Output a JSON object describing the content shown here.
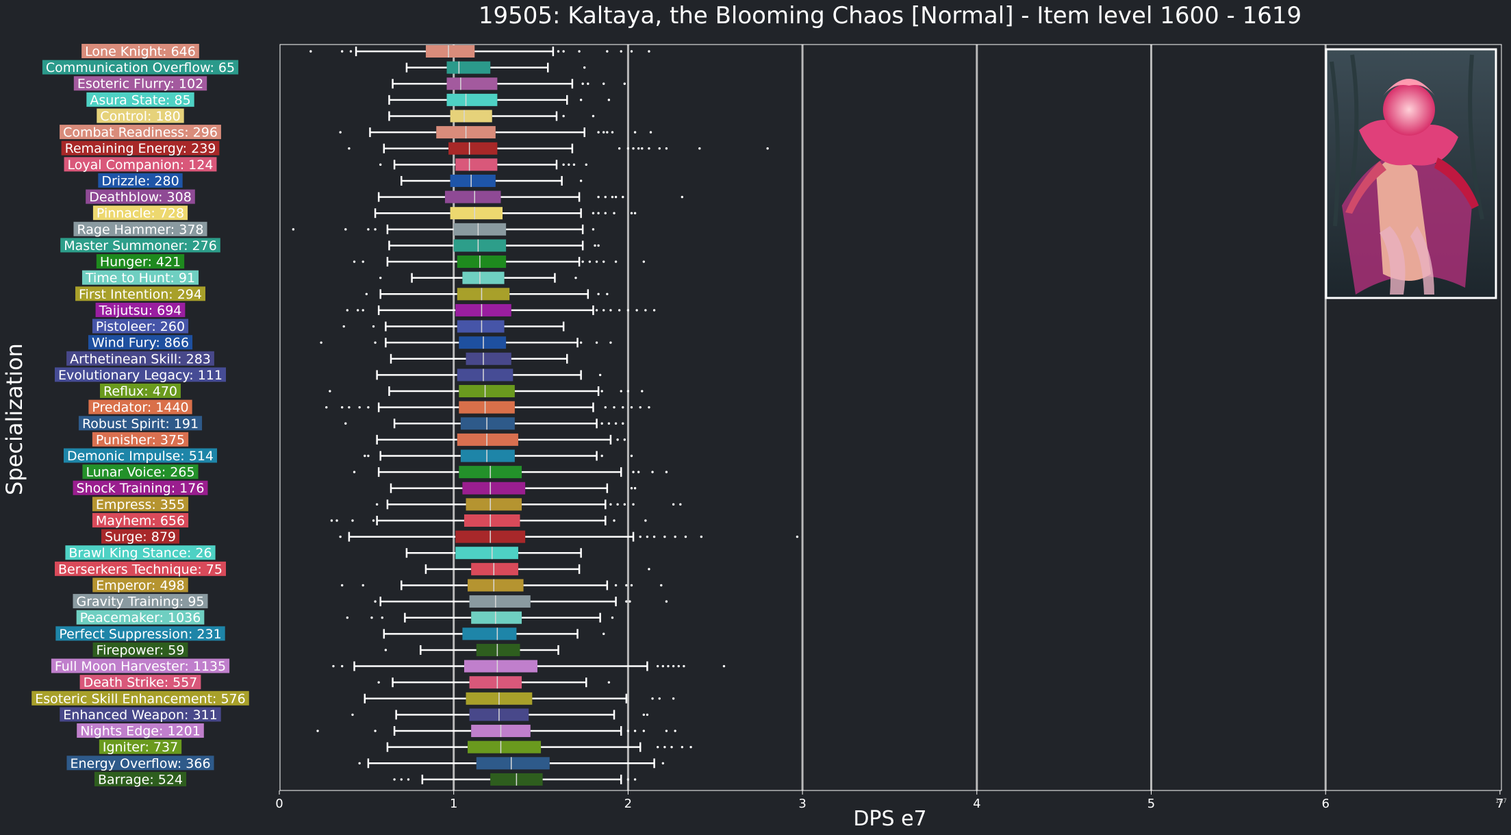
{
  "chart_data": {
    "type": "boxplot",
    "orientation": "horizontal",
    "title": "19505: Kaltaya, the Blooming Chaos [Normal] - Item level 1600 - 1619",
    "xlabel": "DPS e7",
    "ylabel": "Specialization",
    "offset_label": "1e7",
    "xlim": [
      0,
      7
    ],
    "xticks": [
      "0",
      "1",
      "2",
      "3",
      "4",
      "5",
      "6",
      "7"
    ],
    "grid_x": true,
    "boss_image": "kaltaya-boss-portrait",
    "categories": [
      {
        "label": "Lone Knight: 646",
        "color": "#D98C7B",
        "wl": 0.44,
        "q1": 0.84,
        "med": 0.97,
        "q3": 1.12,
        "wh": 1.57,
        "out": [
          0.18,
          0.36,
          0.41,
          1.6,
          1.63,
          1.72,
          1.88,
          1.96,
          2.02,
          2.12
        ]
      },
      {
        "label": "Communication Overflow: 65",
        "color": "#2B9A8B",
        "wl": 0.73,
        "q1": 0.96,
        "med": 1.03,
        "q3": 1.21,
        "wh": 1.54,
        "out": [
          1.75
        ]
      },
      {
        "label": "Esoteric Flurry: 102",
        "color": "#A35A9E",
        "wl": 0.65,
        "q1": 0.96,
        "med": 1.04,
        "q3": 1.25,
        "wh": 1.68,
        "out": [
          1.74,
          1.77,
          1.86,
          1.98
        ]
      },
      {
        "label": "Asura State: 85",
        "color": "#4ED1C4",
        "wl": 0.63,
        "q1": 0.96,
        "med": 1.07,
        "q3": 1.25,
        "wh": 1.65,
        "out": [
          1.73,
          1.89
        ]
      },
      {
        "label": "Control: 180",
        "color": "#E6D27A",
        "wl": 0.63,
        "q1": 0.98,
        "med": 1.06,
        "q3": 1.22,
        "wh": 1.59,
        "out": [
          1.63,
          1.8
        ]
      },
      {
        "label": "Combat Readiness: 296",
        "color": "#D98C7B",
        "wl": 0.52,
        "q1": 0.9,
        "med": 1.07,
        "q3": 1.24,
        "wh": 1.75,
        "out": [
          0.35,
          1.83,
          1.86,
          1.88,
          1.91,
          2.04,
          2.13
        ]
      },
      {
        "label": "Remaining Energy: 239",
        "color": "#A82828",
        "wl": 0.6,
        "q1": 0.97,
        "med": 1.09,
        "q3": 1.25,
        "wh": 1.68,
        "out": [
          0.4,
          1.95,
          2.0,
          2.03,
          2.06,
          2.08,
          2.12,
          2.18,
          2.22,
          2.41,
          2.8
        ]
      },
      {
        "label": "Loyal Companion: 124",
        "color": "#D9587A",
        "wl": 0.66,
        "q1": 1.01,
        "med": 1.09,
        "q3": 1.25,
        "wh": 1.59,
        "out": [
          0.58,
          1.63,
          1.66,
          1.69,
          1.76
        ]
      },
      {
        "label": "Drizzle: 280",
        "color": "#1E55A8",
        "wl": 0.7,
        "q1": 0.98,
        "med": 1.1,
        "q3": 1.24,
        "wh": 1.62,
        "out": [
          1.73
        ]
      },
      {
        "label": "Deathblow: 308",
        "color": "#8F4A95",
        "wl": 0.57,
        "q1": 0.95,
        "med": 1.12,
        "q3": 1.27,
        "wh": 1.72,
        "out": [
          1.83,
          1.87,
          1.91,
          1.93,
          1.97,
          2.31
        ]
      },
      {
        "label": "Pinnacle: 728",
        "color": "#EDD86F",
        "wl": 0.55,
        "q1": 0.98,
        "med": 1.12,
        "q3": 1.28,
        "wh": 1.73,
        "out": [
          1.8,
          1.83,
          1.87,
          1.92,
          2.02,
          2.04
        ]
      },
      {
        "label": "Rage Hammer: 378",
        "color": "#8A9AA0",
        "wl": 0.62,
        "q1": 1.0,
        "med": 1.14,
        "q3": 1.3,
        "wh": 1.74,
        "out": [
          0.08,
          0.38,
          0.51,
          0.55,
          1.8
        ]
      },
      {
        "label": "Master Summoner: 276",
        "color": "#2D9E8A",
        "wl": 0.63,
        "q1": 1.0,
        "med": 1.14,
        "q3": 1.3,
        "wh": 1.74,
        "out": [
          1.81,
          1.83
        ]
      },
      {
        "label": "Hunger: 421",
        "color": "#1E8A1E",
        "wl": 0.62,
        "q1": 1.02,
        "med": 1.15,
        "q3": 1.3,
        "wh": 1.72,
        "out": [
          0.43,
          0.48,
          1.74,
          1.78,
          1.82,
          1.86,
          1.93,
          2.09
        ]
      },
      {
        "label": "Time to Hunt: 91",
        "color": "#6FCFC1",
        "wl": 0.76,
        "q1": 1.05,
        "med": 1.15,
        "q3": 1.29,
        "wh": 1.58,
        "out": [
          0.58,
          1.7
        ]
      },
      {
        "label": "First Intention: 294",
        "color": "#A8A02A",
        "wl": 0.58,
        "q1": 1.02,
        "med": 1.16,
        "q3": 1.32,
        "wh": 1.77,
        "out": [
          0.5,
          1.83,
          1.88
        ]
      },
      {
        "label": "Taijutsu: 694",
        "color": "#9A1EA0",
        "wl": 0.57,
        "q1": 1.01,
        "med": 1.16,
        "q3": 1.33,
        "wh": 1.8,
        "out": [
          0.39,
          0.45,
          0.48,
          1.82,
          1.86,
          1.9,
          1.95,
          2.0,
          2.05,
          2.1,
          2.15
        ]
      },
      {
        "label": "Pistoleer: 260",
        "color": "#4655A8",
        "wl": 0.61,
        "q1": 1.02,
        "med": 1.16,
        "q3": 1.29,
        "wh": 1.63,
        "out": [
          0.37,
          0.54
        ]
      },
      {
        "label": "Wind Fury: 866",
        "color": "#1E50A0",
        "wl": 0.61,
        "q1": 1.03,
        "med": 1.17,
        "q3": 1.3,
        "wh": 1.71,
        "out": [
          0.24,
          0.55,
          1.73,
          1.82,
          1.9
        ]
      },
      {
        "label": "Arthetinean Skill: 283",
        "color": "#48488A",
        "wl": 0.64,
        "q1": 1.07,
        "med": 1.17,
        "q3": 1.33,
        "wh": 1.65,
        "out": []
      },
      {
        "label": "Evolutionary Legacy: 111",
        "color": "#464C95",
        "wl": 0.56,
        "q1": 1.02,
        "med": 1.17,
        "q3": 1.34,
        "wh": 1.73,
        "out": [
          1.84
        ]
      },
      {
        "label": "Reflux: 470",
        "color": "#6A9A1E",
        "wl": 0.63,
        "q1": 1.03,
        "med": 1.18,
        "q3": 1.35,
        "wh": 1.83,
        "out": [
          0.29,
          1.85,
          1.96,
          2.0,
          2.08
        ]
      },
      {
        "label": "Predator: 1440",
        "color": "#D9704A",
        "wl": 0.57,
        "q1": 1.03,
        "med": 1.18,
        "q3": 1.35,
        "wh": 1.8,
        "out": [
          0.27,
          0.36,
          0.4,
          0.46,
          0.51,
          1.87,
          1.92,
          1.97,
          2.02,
          2.07,
          2.12
        ]
      },
      {
        "label": "Robust Spirit: 191",
        "color": "#2E5A8A",
        "wl": 0.66,
        "q1": 1.04,
        "med": 1.19,
        "q3": 1.35,
        "wh": 1.82,
        "out": [
          0.38,
          1.85,
          1.89,
          1.93,
          1.97
        ]
      },
      {
        "label": "Punisher: 375",
        "color": "#D97050",
        "wl": 0.56,
        "q1": 1.02,
        "med": 1.19,
        "q3": 1.37,
        "wh": 1.9,
        "out": [
          1.94,
          1.98
        ]
      },
      {
        "label": "Demonic Impulse: 514",
        "color": "#1E85A8",
        "wl": 0.58,
        "q1": 1.04,
        "med": 1.19,
        "q3": 1.35,
        "wh": 1.82,
        "out": [
          0.49,
          0.51,
          1.85,
          2.02
        ]
      },
      {
        "label": "Lunar Voice: 265",
        "color": "#23912A",
        "wl": 0.57,
        "q1": 1.03,
        "med": 1.21,
        "q3": 1.39,
        "wh": 1.96,
        "out": [
          0.43,
          2.03,
          2.06,
          2.14,
          2.22
        ]
      },
      {
        "label": "Shock Training: 176",
        "color": "#9A1E8F",
        "wl": 0.64,
        "q1": 1.05,
        "med": 1.21,
        "q3": 1.41,
        "wh": 1.88,
        "out": [
          2.02,
          2.04
        ]
      },
      {
        "label": "Empress: 355",
        "color": "#B59430",
        "wl": 0.62,
        "q1": 1.07,
        "med": 1.21,
        "q3": 1.39,
        "wh": 1.87,
        "out": [
          0.56,
          1.9,
          1.94,
          1.98,
          2.03,
          2.26,
          2.3
        ]
      },
      {
        "label": "Mayhem: 656",
        "color": "#D94A5A",
        "wl": 0.56,
        "q1": 1.06,
        "med": 1.21,
        "q3": 1.38,
        "wh": 1.87,
        "out": [
          0.3,
          0.33,
          0.42,
          0.54,
          1.92,
          2.1
        ]
      },
      {
        "label": "Surge: 879",
        "color": "#A8282A",
        "wl": 0.4,
        "q1": 1.01,
        "med": 1.21,
        "q3": 1.41,
        "wh": 2.03,
        "out": [
          0.35,
          2.07,
          2.11,
          2.15,
          2.21,
          2.27,
          2.33,
          2.42,
          2.97
        ]
      },
      {
        "label": "Brawl King Stance: 26",
        "color": "#4ED1C4",
        "wl": 0.73,
        "q1": 1.01,
        "med": 1.22,
        "q3": 1.37,
        "wh": 1.73,
        "out": []
      },
      {
        "label": "Berserkers Technique: 75",
        "color": "#D94A5A",
        "wl": 0.84,
        "q1": 1.1,
        "med": 1.23,
        "q3": 1.37,
        "wh": 1.72,
        "out": [
          2.12
        ]
      },
      {
        "label": "Emperor: 498",
        "color": "#B59430",
        "wl": 0.7,
        "q1": 1.08,
        "med": 1.23,
        "q3": 1.4,
        "wh": 1.88,
        "out": [
          0.36,
          0.48,
          1.93,
          1.99,
          2.02,
          2.19
        ]
      },
      {
        "label": "Gravity Training: 95",
        "color": "#8A9AA0",
        "wl": 0.58,
        "q1": 1.09,
        "med": 1.24,
        "q3": 1.44,
        "wh": 1.93,
        "out": [
          0.55,
          1.99,
          2.01,
          2.22
        ]
      },
      {
        "label": "Peacemaker: 1036",
        "color": "#6FCFC1",
        "wl": 0.72,
        "q1": 1.1,
        "med": 1.24,
        "q3": 1.39,
        "wh": 1.84,
        "out": [
          0.39,
          0.53,
          0.59,
          1.91
        ]
      },
      {
        "label": "Perfect Suppression: 231",
        "color": "#1E85A8",
        "wl": 0.6,
        "q1": 1.05,
        "med": 1.25,
        "q3": 1.36,
        "wh": 1.71,
        "out": [
          1.86
        ]
      },
      {
        "label": "Firepower: 59",
        "color": "#2E5E1E",
        "wl": 0.81,
        "q1": 1.13,
        "med": 1.25,
        "q3": 1.38,
        "wh": 1.6,
        "out": [
          0.61
        ]
      },
      {
        "label": "Full Moon Harvester: 1135",
        "color": "#C07FCC",
        "wl": 0.43,
        "q1": 1.06,
        "med": 1.25,
        "q3": 1.48,
        "wh": 2.11,
        "out": [
          0.31,
          0.36,
          2.17,
          2.2,
          2.23,
          2.26,
          2.29,
          2.32,
          2.55
        ]
      },
      {
        "label": "Death Strike: 557",
        "color": "#D9587A",
        "wl": 0.65,
        "q1": 1.09,
        "med": 1.25,
        "q3": 1.39,
        "wh": 1.76,
        "out": [
          0.57,
          1.89
        ]
      },
      {
        "label": "Esoteric Skill Enhancement: 576",
        "color": "#A8A02A",
        "wl": 0.49,
        "q1": 1.07,
        "med": 1.26,
        "q3": 1.45,
        "wh": 1.99,
        "out": [
          2.14,
          2.18,
          2.26
        ]
      },
      {
        "label": "Enhanced Weapon: 311",
        "color": "#48488A",
        "wl": 0.67,
        "q1": 1.09,
        "med": 1.26,
        "q3": 1.43,
        "wh": 1.92,
        "out": [
          0.42,
          2.09,
          2.11
        ]
      },
      {
        "label": "Nights Edge: 1201",
        "color": "#C07FCC",
        "wl": 0.66,
        "q1": 1.1,
        "med": 1.27,
        "q3": 1.44,
        "wh": 1.96,
        "out": [
          0.22,
          0.55,
          2.0,
          2.04,
          2.09,
          2.22,
          2.27
        ]
      },
      {
        "label": "Igniter: 737",
        "color": "#6A9A1E",
        "wl": 0.62,
        "q1": 1.08,
        "med": 1.27,
        "q3": 1.5,
        "wh": 2.07,
        "out": [
          2.17,
          2.21,
          2.25,
          2.31,
          2.36
        ]
      },
      {
        "label": "Energy Overflow: 366",
        "color": "#2E5A8A",
        "wl": 0.51,
        "q1": 1.13,
        "med": 1.33,
        "q3": 1.55,
        "wh": 2.15,
        "out": [
          0.46,
          2.2
        ]
      },
      {
        "label": "Barrage: 524",
        "color": "#2E5E1E",
        "wl": 0.82,
        "q1": 1.21,
        "med": 1.36,
        "q3": 1.51,
        "wh": 1.96,
        "out": [
          0.66,
          0.7,
          0.74,
          2.0,
          2.04
        ]
      }
    ]
  }
}
